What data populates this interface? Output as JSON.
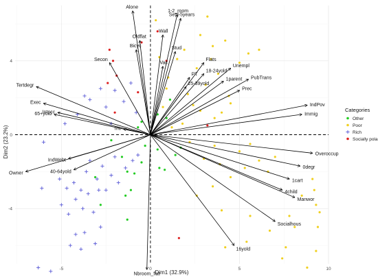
{
  "chart_data": {
    "type": "scatter",
    "subtype": "pca-biplot",
    "xlabel": "Dim1 (32.9%)",
    "ylabel": "Dim2 (23.2%)",
    "xlim": [
      -7.6,
      10
    ],
    "ylim": [
      -7,
      7
    ],
    "xticks": [
      -5,
      0,
      5,
      10
    ],
    "yticks": [
      -4,
      0,
      4
    ],
    "grid": true,
    "reference_lines": {
      "x": 0,
      "y": 0,
      "style": "dashed"
    },
    "legend": {
      "title": "Categories",
      "position": "right",
      "entries": [
        {
          "name": "Other",
          "color": "#22cc22",
          "marker": "dot"
        },
        {
          "name": "Poor",
          "color": "#f0d020",
          "marker": "dot"
        },
        {
          "name": "Rich",
          "color": "#5b5bd6",
          "marker": "plus"
        },
        {
          "name": "Socially polarized",
          "color": "#dd2020",
          "marker": "dot"
        }
      ]
    },
    "variables": [
      {
        "name": "Alone",
        "x": -1.0,
        "y": 6.7
      },
      {
        "name": "1-2_room",
        "x": 1.5,
        "y": 6.5
      },
      {
        "name": "Settl-5years",
        "x": 1.7,
        "y": 6.3
      },
      {
        "name": "Wall",
        "x": 0.7,
        "y": 5.4
      },
      {
        "name": "Oldflat",
        "x": -0.6,
        "y": 5.1
      },
      {
        "name": "Bicyc",
        "x": -0.8,
        "y": 4.6
      },
      {
        "name": "Secon",
        "x": -2.3,
        "y": 3.9
      },
      {
        "name": "Stud",
        "x": 1.4,
        "y": 4.5
      },
      {
        "name": "Vac",
        "x": 0.7,
        "y": 3.7
      },
      {
        "name": "Flats",
        "x": 3.0,
        "y": 3.9
      },
      {
        "name": "Unempl",
        "x": 4.5,
        "y": 3.6
      },
      {
        "name": "18-24yold",
        "x": 3.0,
        "y": 3.3
      },
      {
        "name": "PT",
        "x": 2.2,
        "y": 3.1
      },
      {
        "name": "1parent",
        "x": 4.1,
        "y": 2.9
      },
      {
        "name": "25-39yold",
        "x": 2.0,
        "y": 2.6
      },
      {
        "name": "PubTrans",
        "x": 5.5,
        "y": 3.0
      },
      {
        "name": "Prec",
        "x": 5.0,
        "y": 2.4
      },
      {
        "name": "Tertdegr",
        "x": -6.4,
        "y": 2.6
      },
      {
        "name": "Exec",
        "x": -6.0,
        "y": 1.7
      },
      {
        "name": "Intocc",
        "x": -5.2,
        "y": 1.2
      },
      {
        "name": "65+yold",
        "x": -5.4,
        "y": 1.1
      },
      {
        "name": "IndPov",
        "x": 8.8,
        "y": 1.6
      },
      {
        "name": "Immig",
        "x": 8.5,
        "y": 1.1
      },
      {
        "name": "Inc",
        "x": -1.5,
        "y": 0.3
      },
      {
        "name": "Overoccup",
        "x": 9.1,
        "y": -1.0
      },
      {
        "name": "0degr",
        "x": 8.4,
        "y": -1.7
      },
      {
        "name": "1cart",
        "x": 7.8,
        "y": -2.4
      },
      {
        "name": "4child",
        "x": 7.4,
        "y": -3.0
      },
      {
        "name": "Manwor",
        "x": 8.1,
        "y": -3.4
      },
      {
        "name": "IndWebt",
        "x": -4.6,
        "y": -1.3
      },
      {
        "name": "40-64yold",
        "x": -4.3,
        "y": -1.9
      },
      {
        "name": "Owner",
        "x": -7.0,
        "y": -2.0
      },
      {
        "name": "Socialhous",
        "x": 7.0,
        "y": -4.7
      },
      {
        "name": "16yold",
        "x": 4.7,
        "y": -6.0
      },
      {
        "name": "Nbroom_flat",
        "x": -0.2,
        "y": -7.3
      }
    ],
    "points": {
      "Rich": [
        [
          -6.3,
          -7.2
        ],
        [
          -5.6,
          -7.4
        ],
        [
          -4.5,
          -6.0
        ],
        [
          -4.2,
          -5.4
        ],
        [
          -3.9,
          -6.2
        ],
        [
          -3.7,
          -5.3
        ],
        [
          -3.1,
          -5.9
        ],
        [
          -2.8,
          -5.0
        ],
        [
          -5.0,
          -3.8
        ],
        [
          -4.6,
          -4.3
        ],
        [
          -4.2,
          -3.5
        ],
        [
          -3.8,
          -4.0
        ],
        [
          -3.5,
          -3.2
        ],
        [
          -3.2,
          -4.2
        ],
        [
          -2.9,
          -3.0
        ],
        [
          -6.1,
          -2.9
        ],
        [
          -5.1,
          -2.4
        ],
        [
          -4.7,
          -2.9
        ],
        [
          -4.3,
          -2.6
        ],
        [
          -3.9,
          -3.0
        ],
        [
          -3.6,
          -2.0
        ],
        [
          -3.4,
          -1.4
        ],
        [
          -3.0,
          -2.4
        ],
        [
          -2.7,
          -1.7
        ],
        [
          -2.5,
          -3.0
        ],
        [
          -2.2,
          -2.2
        ],
        [
          -2.0,
          -1.2
        ],
        [
          -1.8,
          -2.6
        ],
        [
          -1.4,
          -1.8
        ],
        [
          -1.0,
          -1.4
        ],
        [
          -0.7,
          -1.1
        ],
        [
          -4.1,
          1.1
        ],
        [
          -3.7,
          2.1
        ],
        [
          -3.4,
          1.9
        ],
        [
          -2.8,
          2.5
        ],
        [
          -2.5,
          1.5
        ],
        [
          -2.2,
          0.6
        ],
        [
          -2.0,
          2.4
        ],
        [
          -1.5,
          1.8
        ],
        [
          -1.1,
          2.8
        ],
        [
          -0.8,
          1.2
        ],
        [
          -4.8,
          0.6
        ],
        [
          -6.0,
          -0.4
        ]
      ],
      "Other": [
        [
          -3.1,
          -2.3
        ],
        [
          -2.8,
          -3.8
        ],
        [
          -1.6,
          -1.2
        ],
        [
          -1.4,
          -3.3
        ],
        [
          -1.3,
          -2.0
        ],
        [
          -1.1,
          -3.0
        ],
        [
          -0.9,
          -2.1
        ],
        [
          -1.3,
          -4.6
        ],
        [
          -0.5,
          -1.5
        ],
        [
          -0.3,
          -0.6
        ],
        [
          -0.5,
          0.7
        ],
        [
          -0.7,
          0.4
        ],
        [
          0.4,
          -0.8
        ],
        [
          0.5,
          -1.8
        ],
        [
          0.8,
          -1.9
        ],
        [
          1.4,
          -1.1
        ],
        [
          1.7,
          -0.7
        ],
        [
          0.9,
          0.9
        ],
        [
          0.4,
          1.1
        ],
        [
          1.1,
          1.9
        ],
        [
          -2.2,
          -0.3
        ]
      ],
      "Poor": [
        [
          0.3,
          6.2
        ],
        [
          0.5,
          4.2
        ],
        [
          1.0,
          3.1
        ],
        [
          1.5,
          4.1
        ],
        [
          1.9,
          4.6
        ],
        [
          2.1,
          2.2
        ],
        [
          2.4,
          1.6
        ],
        [
          2.6,
          3.6
        ],
        [
          3.1,
          2.7
        ],
        [
          3.4,
          4.1
        ],
        [
          3.8,
          3.3
        ],
        [
          4.4,
          2.1
        ],
        [
          4.5,
          1.7
        ],
        [
          4.0,
          1.2
        ],
        [
          3.6,
          0.9
        ],
        [
          2.8,
          1.3
        ],
        [
          1.8,
          0.6
        ],
        [
          1.2,
          0.4
        ],
        [
          0.7,
          1.5
        ],
        [
          2.2,
          -0.4
        ],
        [
          3.6,
          -0.6
        ],
        [
          3.9,
          -1.6
        ],
        [
          4.5,
          -2.3
        ],
        [
          3.5,
          -2.8
        ],
        [
          3.0,
          -1.3
        ],
        [
          5.0,
          -0.9
        ],
        [
          5.6,
          -0.5
        ],
        [
          6.1,
          -1.4
        ],
        [
          6.6,
          -2.0
        ],
        [
          7.0,
          -1.2
        ],
        [
          5.3,
          -1.8
        ],
        [
          2.6,
          -3.3
        ],
        [
          4.0,
          -4.1
        ],
        [
          5.6,
          -4.4
        ],
        [
          4.2,
          -6.1
        ],
        [
          5.4,
          -5.8
        ],
        [
          6.7,
          -5.2
        ],
        [
          7.8,
          -4.4
        ],
        [
          8.1,
          -5.0
        ],
        [
          8.5,
          -3.3
        ],
        [
          9.1,
          -2.4
        ],
        [
          9.2,
          -3.0
        ],
        [
          9.3,
          -3.8
        ],
        [
          9.5,
          -4.2
        ],
        [
          9.4,
          -5.0
        ],
        [
          9.3,
          -6.3
        ],
        [
          7.6,
          -6.1
        ],
        [
          7.4,
          -6.7
        ],
        [
          8.8,
          -7.2
        ],
        [
          6.1,
          4.6
        ],
        [
          4.2,
          5.1
        ],
        [
          3.2,
          6.4
        ],
        [
          2.8,
          5.4
        ],
        [
          3.5,
          4.8
        ],
        [
          5.0,
          3.9
        ],
        [
          5.5,
          4.4
        ],
        [
          0.9,
          2.5
        ]
      ],
      "Socially polarized": [
        [
          -2.3,
          4.6
        ],
        [
          -2.1,
          4.0
        ],
        [
          -1.9,
          3.2
        ],
        [
          -2.4,
          2.8
        ],
        [
          -0.5,
          5.0
        ],
        [
          -0.7,
          2.3
        ],
        [
          0.4,
          5.6
        ],
        [
          -2.0,
          1.2
        ],
        [
          1.6,
          -5.6
        ],
        [
          0.9,
          4.0
        ],
        [
          3.2,
          0.5
        ]
      ]
    }
  }
}
